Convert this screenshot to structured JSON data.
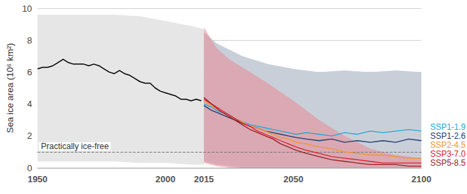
{
  "chart_data": {
    "type": "line",
    "y_label": "Sea ice area (10⁶ km²)",
    "xlim": [
      1950,
      2100
    ],
    "xticks": [
      1950,
      2000,
      2015,
      2050,
      2100
    ],
    "ylim": [
      0,
      10
    ],
    "yticks": [
      0,
      2,
      4,
      6,
      8,
      10
    ],
    "grid": true,
    "legend": "right",
    "annotations": [
      {
        "text": "Practically ice-free",
        "y": 1,
        "line_style": "dashed"
      }
    ],
    "ranges": [
      {
        "color": "#e6e6e6",
        "x": [
          1950,
          1960,
          1970,
          1980,
          1990,
          2000,
          2010,
          2015
        ],
        "lower": [
          0.4,
          0.4,
          0.4,
          0.4,
          0.3,
          0.3,
          0.2,
          0.2
        ],
        "upper": [
          9.6,
          9.6,
          9.6,
          9.6,
          9.5,
          9.2,
          8.9,
          8.7
        ]
      },
      {
        "color": "#c9cfd9",
        "x": [
          2015,
          2020,
          2025,
          2030,
          2040,
          2050,
          2060,
          2070,
          2080,
          2090,
          2100
        ],
        "lower": [
          0.4,
          0.2,
          0.1,
          0,
          0,
          0,
          0,
          0,
          0,
          0,
          0
        ],
        "upper": [
          8.5,
          7.8,
          7.4,
          7.0,
          6.5,
          6.2,
          6.0,
          6.1,
          6.0,
          6.1,
          6.0
        ]
      },
      {
        "color": "#e88a93",
        "x": [
          2015,
          2020,
          2025,
          2030,
          2040,
          2050,
          2060,
          2070,
          2080,
          2090,
          2100
        ],
        "lower": [
          0.3,
          0.1,
          0,
          0,
          0,
          0,
          0,
          0,
          0,
          0,
          0
        ],
        "upper": [
          8.8,
          7.5,
          6.8,
          6.3,
          5.3,
          4.2,
          3.0,
          2.0,
          1.2,
          0.8,
          0.6
        ]
      }
    ],
    "series": [
      {
        "color": "#000000",
        "x": [
          1950,
          1952,
          1954,
          1956,
          1958,
          1960,
          1962,
          1964,
          1966,
          1968,
          1970,
          1972,
          1974,
          1976,
          1978,
          1980,
          1982,
          1984,
          1986,
          1988,
          1990,
          1992,
          1994,
          1996,
          1998,
          2000,
          2002,
          2004,
          2006,
          2008,
          2010,
          2012,
          2014
        ],
        "values": [
          6.2,
          6.3,
          6.3,
          6.4,
          6.6,
          6.8,
          6.6,
          6.5,
          6.5,
          6.5,
          6.4,
          6.5,
          6.4,
          6.2,
          6.0,
          5.9,
          6.1,
          5.9,
          5.8,
          5.6,
          5.4,
          5.3,
          5.3,
          5.0,
          4.8,
          4.7,
          4.6,
          4.5,
          4.3,
          4.3,
          4.2,
          4.3,
          4.2
        ]
      },
      {
        "name": "SSP1-1.9",
        "color": "#1ea9d9",
        "x": [
          2015,
          2018,
          2021,
          2024,
          2027,
          2030,
          2033,
          2036,
          2039,
          2042,
          2045,
          2048,
          2051,
          2055,
          2060,
          2065,
          2070,
          2075,
          2080,
          2085,
          2090,
          2095,
          2100
        ],
        "values": [
          4.0,
          3.8,
          3.5,
          3.4,
          3.1,
          2.9,
          2.7,
          2.6,
          2.5,
          2.4,
          2.3,
          2.2,
          2.1,
          2.2,
          2.1,
          2.0,
          2.2,
          2.1,
          2.3,
          2.2,
          2.3,
          2.4,
          2.3
        ]
      },
      {
        "name": "SSP1-2.6",
        "color": "#1f3a6b",
        "x": [
          2015,
          2018,
          2021,
          2024,
          2027,
          2030,
          2033,
          2036,
          2039,
          2042,
          2045,
          2048,
          2051,
          2055,
          2060,
          2065,
          2070,
          2075,
          2080,
          2085,
          2090,
          2095,
          2100
        ],
        "values": [
          3.9,
          3.6,
          3.4,
          3.2,
          3.0,
          2.8,
          2.6,
          2.5,
          2.3,
          2.2,
          2.1,
          2.0,
          1.9,
          1.8,
          1.7,
          1.8,
          1.6,
          1.7,
          1.6,
          1.7,
          1.6,
          1.8,
          1.7
        ]
      },
      {
        "name": "SSP2-4.5",
        "color": "#f4932f",
        "x": [
          2015,
          2018,
          2021,
          2024,
          2027,
          2030,
          2033,
          2036,
          2039,
          2042,
          2045,
          2048,
          2051,
          2055,
          2060,
          2065,
          2070,
          2075,
          2080,
          2085,
          2090,
          2095,
          2100
        ],
        "values": [
          4.2,
          3.9,
          3.6,
          3.3,
          3.1,
          2.9,
          2.6,
          2.5,
          2.3,
          2.1,
          1.9,
          1.8,
          1.6,
          1.5,
          1.3,
          1.2,
          1.0,
          0.9,
          0.8,
          0.8,
          0.7,
          0.6,
          0.6
        ]
      },
      {
        "name": "SSP3-7.0",
        "color": "#e0202c",
        "x": [
          2015,
          2018,
          2021,
          2024,
          2027,
          2030,
          2033,
          2036,
          2039,
          2042,
          2045,
          2048,
          2051,
          2055,
          2060,
          2065,
          2070,
          2075,
          2080,
          2085,
          2090,
          2095,
          2100
        ],
        "values": [
          4.3,
          4.0,
          3.7,
          3.4,
          3.1,
          2.8,
          2.6,
          2.3,
          2.1,
          1.9,
          1.7,
          1.5,
          1.3,
          1.1,
          0.9,
          0.7,
          0.6,
          0.5,
          0.4,
          0.3,
          0.3,
          0.3,
          0.3
        ]
      },
      {
        "name": "SSP5-8.5",
        "color": "#9b1c22",
        "x": [
          2015,
          2018,
          2021,
          2024,
          2027,
          2030,
          2033,
          2036,
          2039,
          2042,
          2045,
          2048,
          2051,
          2055,
          2060,
          2065,
          2070,
          2075,
          2080,
          2085,
          2090,
          2095,
          2100
        ],
        "values": [
          4.4,
          4.0,
          3.6,
          3.3,
          3.0,
          2.7,
          2.4,
          2.2,
          2.0,
          1.8,
          1.5,
          1.3,
          1.1,
          0.9,
          0.7,
          0.5,
          0.4,
          0.3,
          0.2,
          0.2,
          0.2,
          0.1,
          0.1
        ]
      }
    ]
  }
}
